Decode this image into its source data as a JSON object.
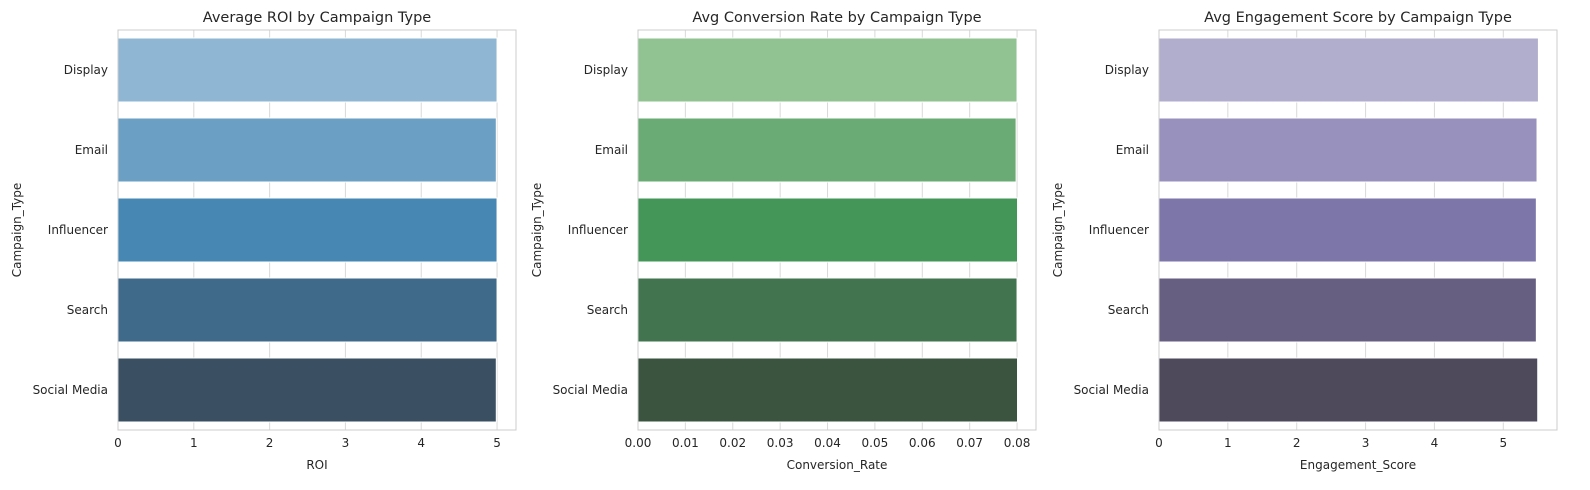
{
  "chart_data": [
    {
      "type": "bar",
      "orientation": "horizontal",
      "title": "Average ROI by Campaign Type",
      "xlabel": "ROI",
      "ylabel": "Campaign_Type",
      "categories": [
        "Display",
        "Email",
        "Influencer",
        "Search",
        "Social Media"
      ],
      "values": [
        5.0,
        4.99,
        5.0,
        5.0,
        4.99
      ],
      "xlim": [
        0,
        5.25
      ],
      "xticks": [
        0,
        1,
        2,
        3,
        4,
        5
      ],
      "xtick_labels": [
        "0",
        "1",
        "2",
        "3",
        "4",
        "5"
      ],
      "grid": true,
      "colors": [
        "#8fb7d3",
        "#6b9fc3",
        "#4787b3",
        "#406a8a",
        "#3a5062"
      ]
    },
    {
      "type": "bar",
      "orientation": "horizontal",
      "title": "Avg Conversion Rate by Campaign Type",
      "xlabel": "Conversion_Rate",
      "ylabel": "Campaign_Type",
      "categories": [
        "Display",
        "Email",
        "Influencer",
        "Search",
        "Social Media"
      ],
      "values": [
        0.08,
        0.0798,
        0.0801,
        0.08,
        0.0801
      ],
      "xlim": [
        0,
        0.084
      ],
      "xticks": [
        0,
        0.01,
        0.02,
        0.03,
        0.04,
        0.05,
        0.06,
        0.07,
        0.08
      ],
      "xtick_labels": [
        "0.00",
        "0.01",
        "0.02",
        "0.03",
        "0.04",
        "0.05",
        "0.06",
        "0.07",
        "0.08"
      ],
      "grid": true,
      "colors": [
        "#90c292",
        "#6aab75",
        "#449558",
        "#41744f",
        "#3a5440"
      ]
    },
    {
      "type": "bar",
      "orientation": "horizontal",
      "title": "Avg Engagement Score by Campaign Type",
      "xlabel": "Engagement_Score",
      "ylabel": "Campaign_Type",
      "categories": [
        "Display",
        "Email",
        "Influencer",
        "Search",
        "Social Media"
      ],
      "values": [
        5.51,
        5.49,
        5.48,
        5.48,
        5.5
      ],
      "xlim": [
        0,
        5.78
      ],
      "xticks": [
        0,
        1,
        2,
        3,
        4,
        5
      ],
      "xtick_labels": [
        "0",
        "1",
        "2",
        "3",
        "4",
        "5"
      ],
      "grid": true,
      "colors": [
        "#b0adcd",
        "#9991bd",
        "#7d76a9",
        "#675f81",
        "#4e4a5c"
      ]
    }
  ]
}
